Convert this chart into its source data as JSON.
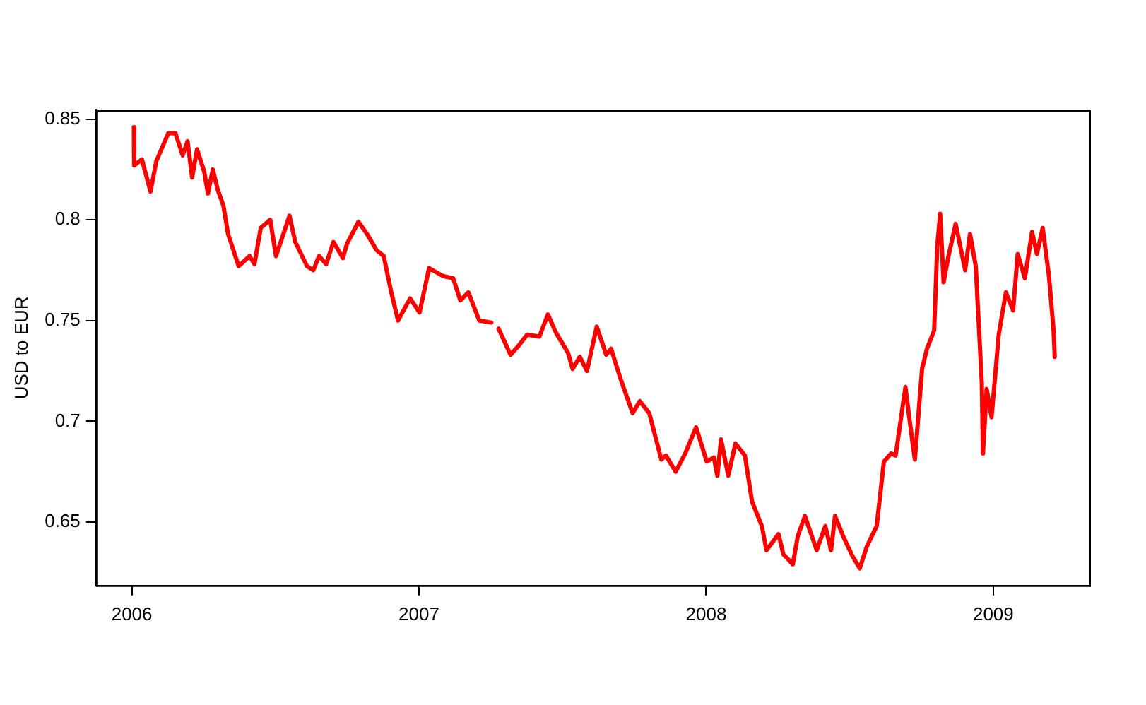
{
  "chart_data": {
    "type": "line",
    "ylabel": "USD to EUR",
    "xlim": [
      2005.875,
      2009.335
    ],
    "xticks": [
      2006,
      2007,
      2008,
      2009
    ],
    "ylim": [
      0.6185,
      0.8544
    ],
    "yticks": [
      0.65,
      0.7,
      0.75,
      0.8,
      0.85
    ],
    "grid": false,
    "legend": false,
    "marker": "none",
    "line_style": "solid",
    "series": [
      {
        "color": "#ff0000",
        "x": [
          2006.007,
          2006.008,
          2006.035,
          2006.065,
          2006.085,
          2006.127,
          2006.152,
          2006.177,
          2006.194,
          2006.21,
          2006.227,
          2006.252,
          2006.265,
          2006.282,
          2006.299,
          2006.319,
          2006.335,
          2006.372,
          2006.41,
          2006.427,
          2006.449,
          2006.482,
          2006.502,
          2006.549,
          2006.569,
          2006.61,
          2006.632,
          2006.652,
          2006.677,
          2006.702,
          2006.735,
          2006.749,
          2006.789,
          2006.819,
          2006.852,
          2006.877,
          2006.902,
          2006.927,
          2006.969,
          2007.002,
          2007.035,
          2007.085,
          2007.119,
          2007.144,
          2007.172,
          2007.21,
          2007.252,
          2007.265,
          2007.277,
          2007.319,
          2007.344,
          2007.377,
          2007.419,
          2007.449,
          2007.477,
          2007.519,
          2007.535,
          2007.56,
          2007.585,
          2007.619,
          2007.652,
          2007.669,
          2007.702,
          2007.744,
          2007.769,
          2007.802,
          2007.844,
          2007.86,
          2007.894,
          2007.927,
          2007.965,
          2008.002,
          2008.027,
          2008.039,
          2008.052,
          2008.077,
          2008.102,
          2008.135,
          2008.16,
          2008.194,
          2008.21,
          2008.252,
          2008.269,
          2008.302,
          2008.319,
          2008.344,
          2008.385,
          2008.415,
          2008.435,
          2008.449,
          2008.477,
          2008.51,
          2008.535,
          2008.56,
          2008.594,
          2008.619,
          2008.644,
          2008.66,
          2008.694,
          2008.719,
          2008.727,
          2008.752,
          2008.769,
          2008.794,
          2008.805,
          2008.815,
          2008.827,
          2008.844,
          2008.869,
          2008.902,
          2008.919,
          2008.939,
          2008.96,
          2008.964,
          2008.977,
          2008.994,
          2009.019,
          2009.044,
          2009.069,
          2009.085,
          2009.11,
          2009.135,
          2009.152,
          2009.172,
          2009.194,
          2009.21,
          2009.214
        ],
        "values": [
          0.846,
          0.827,
          0.83,
          0.814,
          0.829,
          0.843,
          0.843,
          0.832,
          0.839,
          0.821,
          0.835,
          0.824,
          0.813,
          0.825,
          0.815,
          0.807,
          0.793,
          0.777,
          0.782,
          0.778,
          0.796,
          0.8,
          0.782,
          0.802,
          0.789,
          0.777,
          0.775,
          0.782,
          0.778,
          0.789,
          0.781,
          0.788,
          0.799,
          0.793,
          0.785,
          0.782,
          0.765,
          0.75,
          0.761,
          0.754,
          0.776,
          0.772,
          0.771,
          0.76,
          0.764,
          0.75,
          0.749,
          null,
          0.746,
          0.733,
          0.737,
          0.743,
          0.742,
          0.753,
          0.744,
          0.734,
          0.726,
          0.732,
          0.725,
          0.747,
          0.733,
          0.736,
          0.721,
          0.704,
          0.71,
          0.704,
          0.681,
          0.683,
          0.675,
          0.684,
          0.697,
          0.68,
          0.682,
          0.673,
          0.691,
          0.673,
          0.689,
          0.683,
          0.66,
          0.648,
          0.636,
          0.644,
          0.634,
          0.629,
          0.643,
          0.653,
          0.636,
          0.648,
          0.636,
          0.653,
          0.643,
          0.633,
          0.627,
          0.638,
          0.648,
          0.68,
          0.684,
          0.683,
          0.717,
          0.689,
          0.681,
          0.726,
          0.736,
          0.745,
          0.787,
          0.803,
          0.769,
          0.782,
          0.798,
          0.775,
          0.793,
          0.777,
          0.719,
          0.684,
          0.716,
          0.702,
          0.743,
          0.764,
          0.755,
          0.783,
          0.771,
          0.794,
          0.783,
          0.796,
          0.772,
          0.745,
          0.732
        ]
      }
    ]
  }
}
